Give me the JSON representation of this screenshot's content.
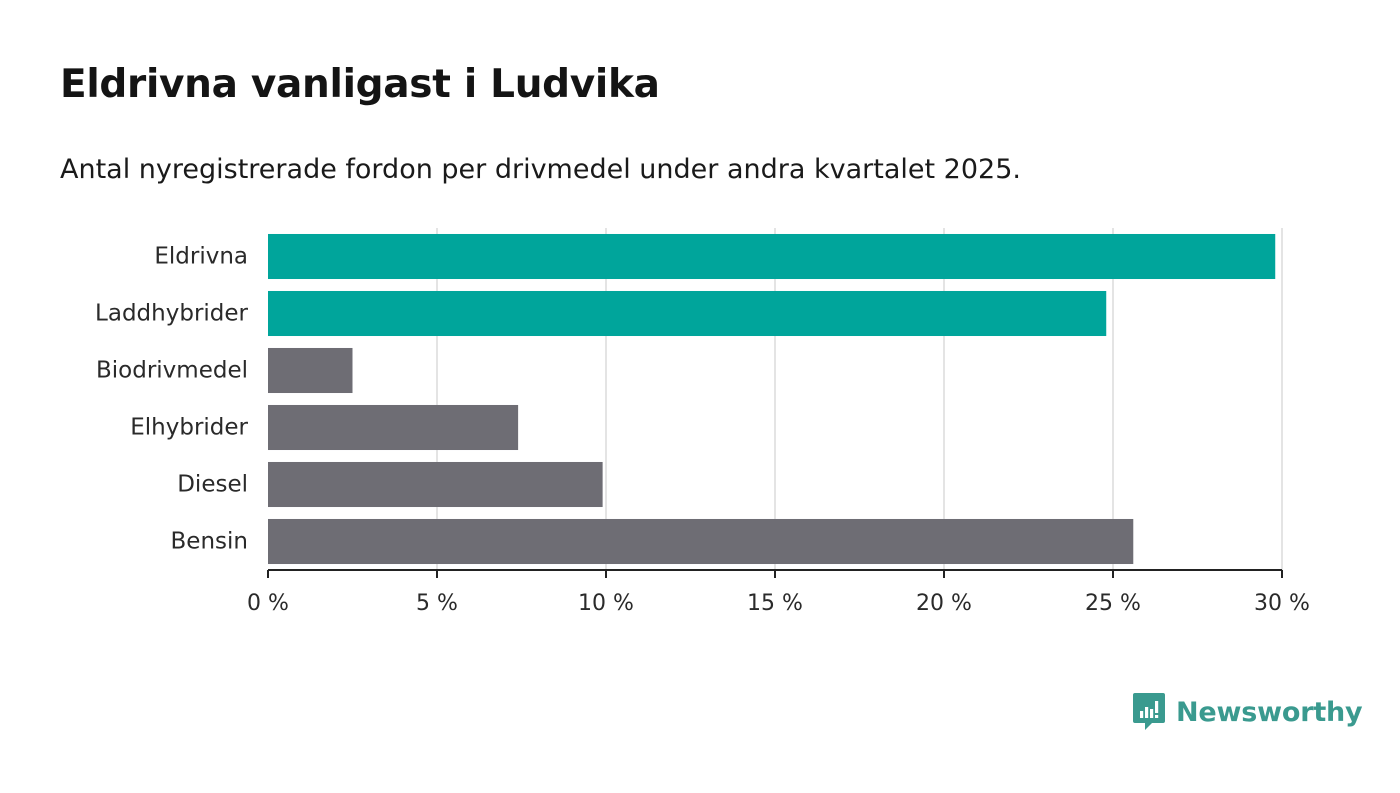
{
  "title": "Eldrivna vanligast i Ludvika",
  "subtitle": "Antal nyregistrerade fordon per drivmedel under andra kvartalet 2025.",
  "brand": {
    "name": "Newsworthy",
    "icon": "newsworthy-logo-icon"
  },
  "colors": {
    "highlight": "#00a59b",
    "other": "#6e6d74",
    "grid": "#dcdcdc",
    "axis": "#222222"
  },
  "chart_data": {
    "type": "bar",
    "orientation": "horizontal",
    "categories": [
      "Eldrivna",
      "Laddhybrider",
      "Biodrivmedel",
      "Elhybrider",
      "Diesel",
      "Bensin"
    ],
    "values": [
      29.8,
      24.8,
      2.5,
      7.4,
      9.9,
      25.6
    ],
    "highlighted": [
      true,
      true,
      false,
      false,
      false,
      false
    ],
    "xlim": [
      0,
      30
    ],
    "xticks": [
      0,
      5,
      10,
      15,
      20,
      25,
      30
    ],
    "xtick_labels": [
      "0 %",
      "5 %",
      "10 %",
      "15 %",
      "20 %",
      "25 %",
      "30 %"
    ],
    "grid": true
  }
}
